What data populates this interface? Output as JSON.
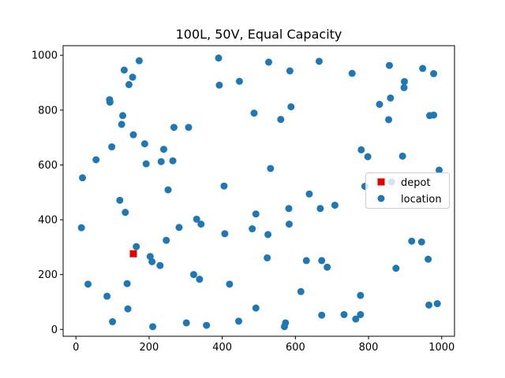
{
  "chart_data": {
    "type": "scatter",
    "title": "100L, 50V, Equal Capacity",
    "xlabel": "",
    "ylabel": "",
    "xlim": [
      -35,
      1035
    ],
    "ylim": [
      -25,
      1035
    ],
    "x_ticks": [
      0,
      200,
      400,
      600,
      800,
      1000
    ],
    "y_ticks": [
      0,
      200,
      400,
      600,
      800,
      1000
    ],
    "grid": false,
    "legend": {
      "placement": "center-right"
    },
    "series": [
      {
        "name": "depot",
        "marker": "square",
        "color": "#e50000",
        "points": [
          [
            157,
            276
          ]
        ]
      },
      {
        "name": "location",
        "marker": "circle",
        "color": "#1f77b4",
        "points": [
          [
            15,
            371
          ],
          [
            18,
            553
          ],
          [
            33,
            165
          ],
          [
            55,
            619
          ],
          [
            85,
            121
          ],
          [
            92,
            838
          ],
          [
            93,
            829
          ],
          [
            98,
            666
          ],
          [
            100,
            28
          ],
          [
            120,
            471
          ],
          [
            125,
            748
          ],
          [
            128,
            780
          ],
          [
            132,
            946
          ],
          [
            135,
            427
          ],
          [
            140,
            167
          ],
          [
            142,
            75
          ],
          [
            145,
            893
          ],
          [
            155,
            920
          ],
          [
            157,
            710
          ],
          [
            165,
            302
          ],
          [
            173,
            980
          ],
          [
            188,
            677
          ],
          [
            192,
            604
          ],
          [
            203,
            266
          ],
          [
            208,
            247
          ],
          [
            210,
            10
          ],
          [
            230,
            233
          ],
          [
            233,
            612
          ],
          [
            240,
            657
          ],
          [
            247,
            325
          ],
          [
            252,
            509
          ],
          [
            265,
            615
          ],
          [
            268,
            737
          ],
          [
            282,
            372
          ],
          [
            302,
            24
          ],
          [
            308,
            737
          ],
          [
            322,
            200
          ],
          [
            330,
            402
          ],
          [
            338,
            183
          ],
          [
            342,
            384
          ],
          [
            357,
            15
          ],
          [
            390,
            990
          ],
          [
            392,
            891
          ],
          [
            405,
            523
          ],
          [
            407,
            349
          ],
          [
            420,
            165
          ],
          [
            445,
            30
          ],
          [
            447,
            905
          ],
          [
            482,
            367
          ],
          [
            487,
            789
          ],
          [
            492,
            421
          ],
          [
            492,
            78
          ],
          [
            523,
            261
          ],
          [
            525,
            346
          ],
          [
            527,
            975
          ],
          [
            532,
            587
          ],
          [
            560,
            766
          ],
          [
            570,
            10
          ],
          [
            573,
            24
          ],
          [
            582,
            441
          ],
          [
            583,
            384
          ],
          [
            585,
            943
          ],
          [
            588,
            812
          ],
          [
            615,
            138
          ],
          [
            630,
            251
          ],
          [
            638,
            494
          ],
          [
            665,
            978
          ],
          [
            668,
            441
          ],
          [
            672,
            251
          ],
          [
            672,
            52
          ],
          [
            687,
            227
          ],
          [
            708,
            453
          ],
          [
            733,
            54
          ],
          [
            755,
            934
          ],
          [
            765,
            38
          ],
          [
            778,
            124
          ],
          [
            778,
            54
          ],
          [
            780,
            655
          ],
          [
            790,
            522
          ],
          [
            798,
            630
          ],
          [
            830,
            821
          ],
          [
            855,
            765
          ],
          [
            857,
            963
          ],
          [
            860,
            844
          ],
          [
            863,
            538
          ],
          [
            875,
            223
          ],
          [
            893,
            632
          ],
          [
            897,
            882
          ],
          [
            898,
            904
          ],
          [
            918,
            322
          ],
          [
            945,
            319
          ],
          [
            948,
            952
          ],
          [
            963,
            256
          ],
          [
            965,
            89
          ],
          [
            967,
            780
          ],
          [
            978,
            933
          ],
          [
            978,
            782
          ],
          [
            988,
            94
          ],
          [
            993,
            581
          ]
        ]
      }
    ]
  }
}
